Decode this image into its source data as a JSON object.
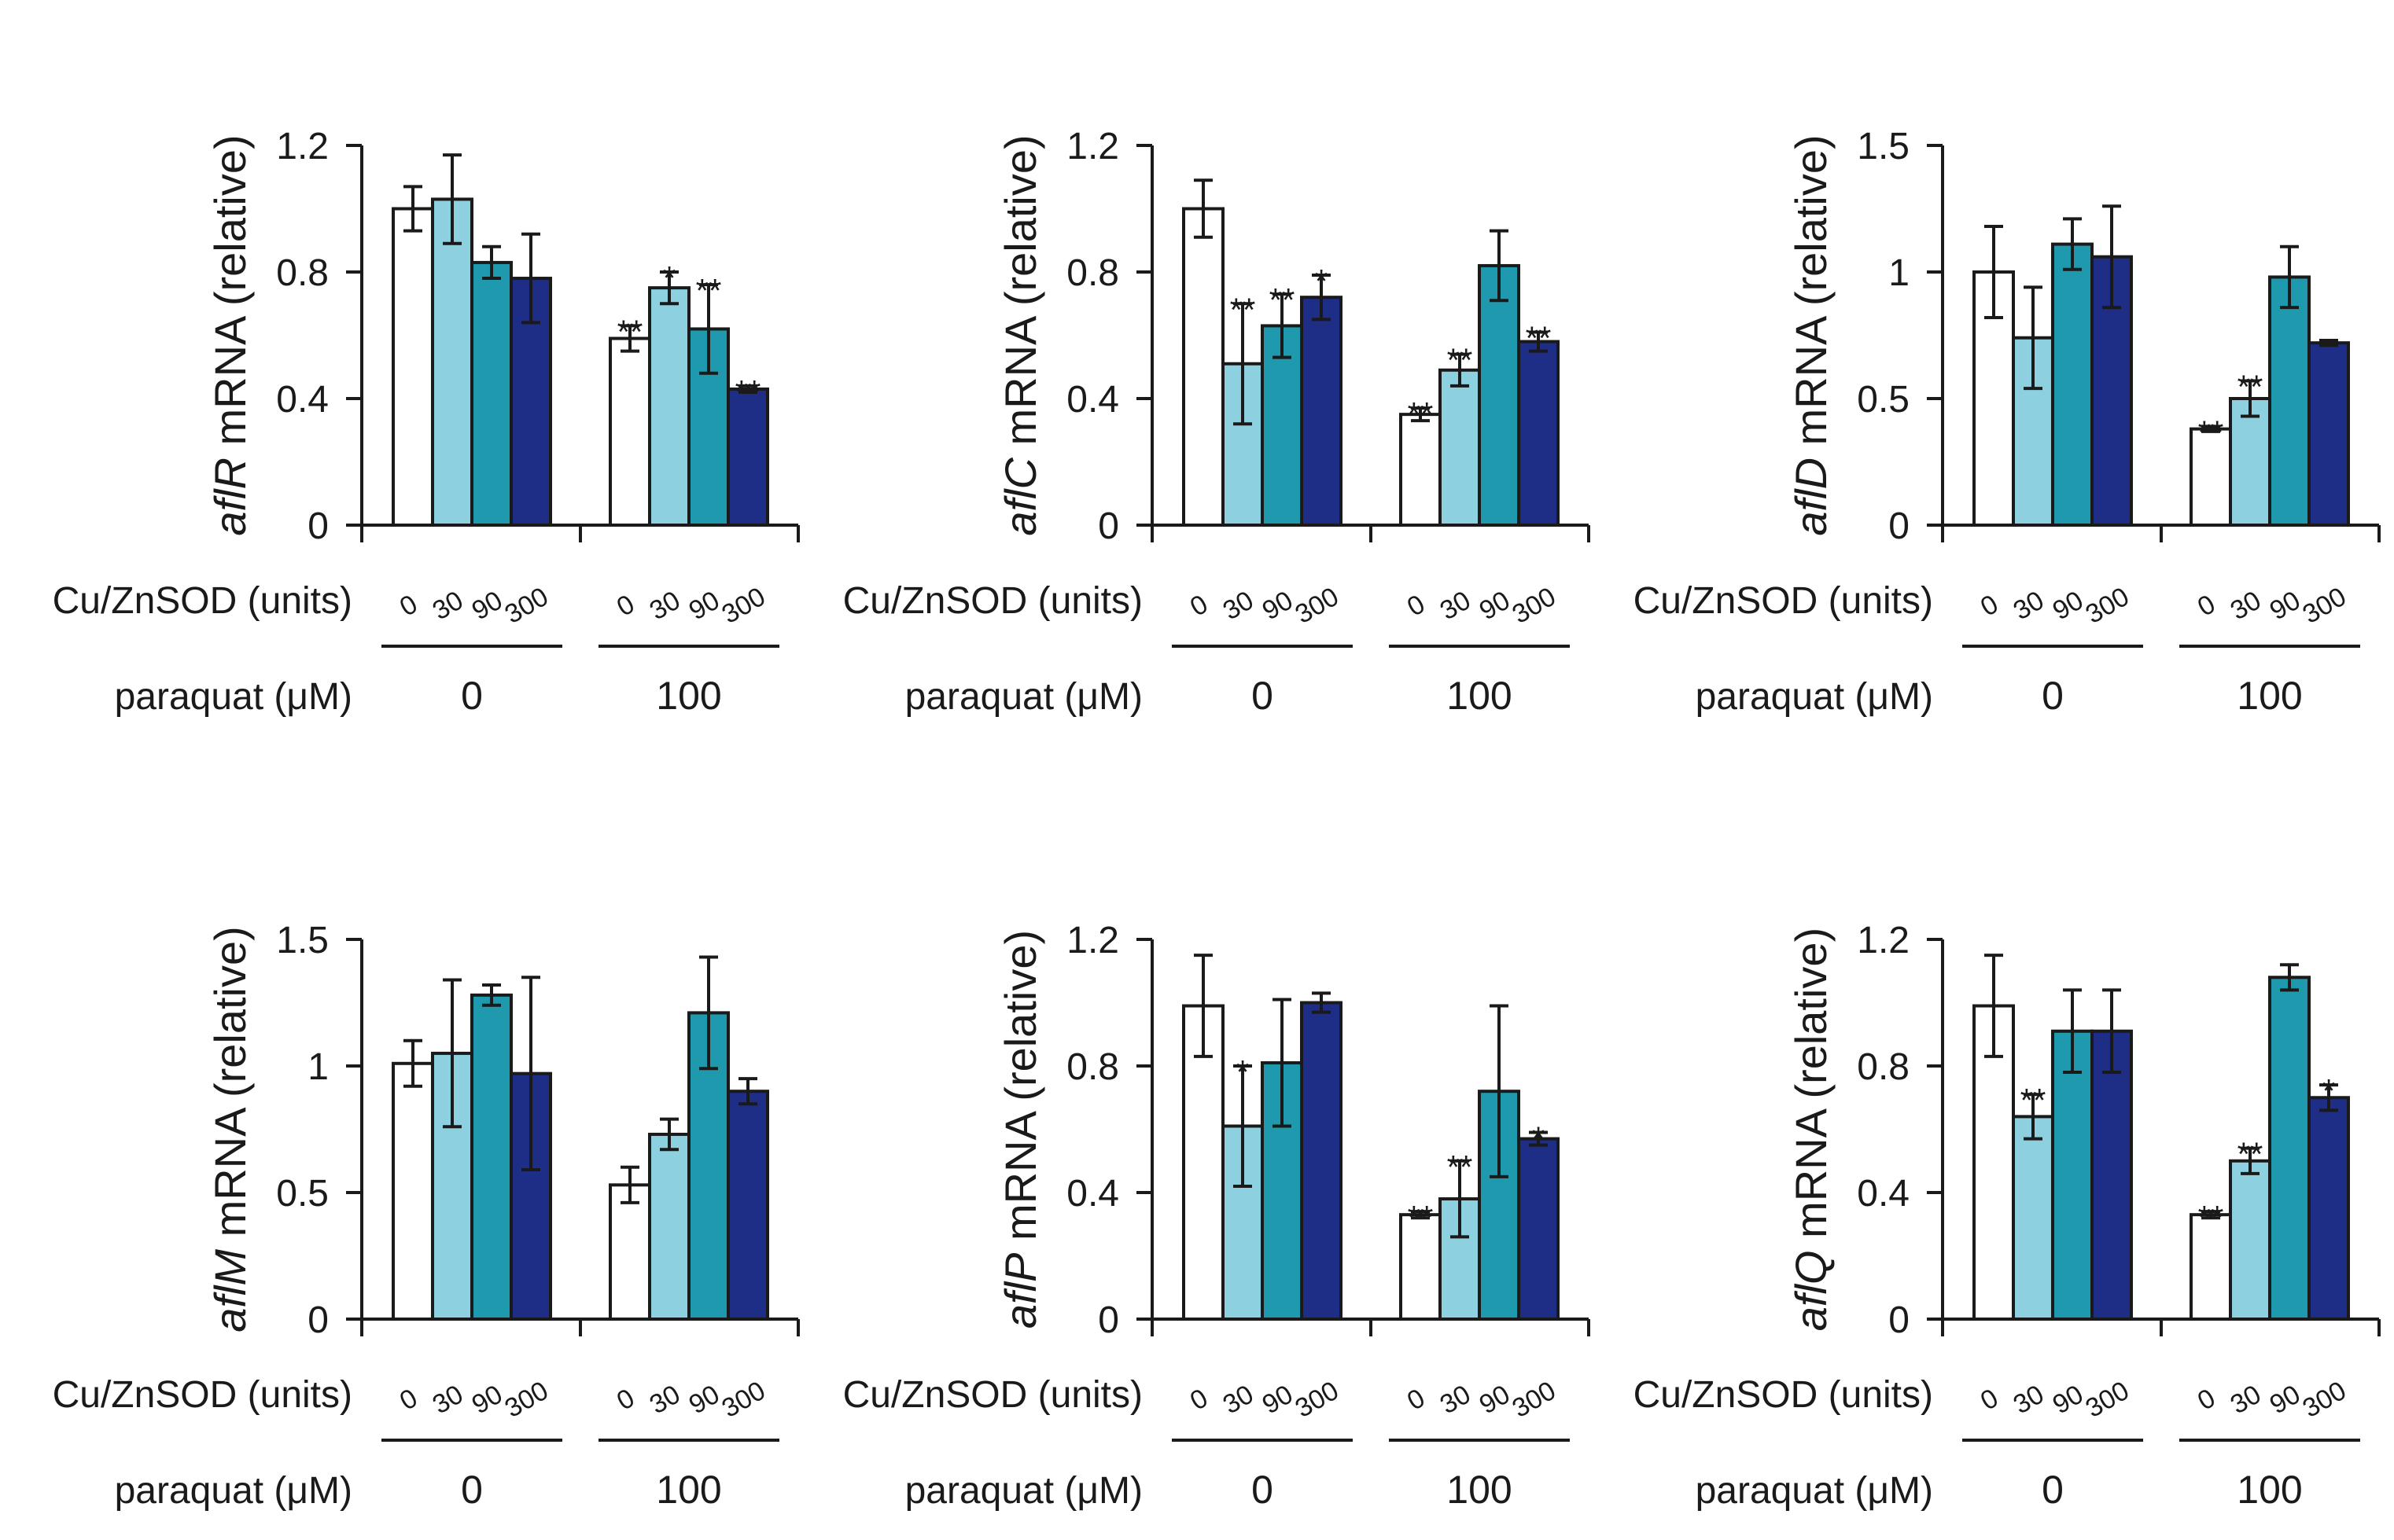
{
  "labels": {
    "enzyme_axis": "Cu/ZnSOD (units)",
    "paraquat_axis": "paraquat (μM)",
    "ylabel_suffix": " mRNA (relative)",
    "cu_levels": [
      "0",
      "30",
      "90",
      "300"
    ],
    "paraquat_levels": [
      "0",
      "100"
    ]
  },
  "colors": {
    "cu_0": "#ffffff",
    "cu_30": "#8dd1e0",
    "cu_90": "#1f99ad",
    "cu_300": "#1e2d85",
    "outline": "#1a1a1a"
  },
  "chart_data": [
    {
      "type": "bar",
      "gene": "aflR",
      "ylim": [
        0,
        1.2
      ],
      "ticks": [
        "0",
        "0.4",
        "0.8",
        "1.2"
      ],
      "series": [
        {
          "name": "0",
          "values": [
            1.0,
            0.59
          ],
          "errors": [
            0.07,
            0.04
          ],
          "sig": [
            "",
            "**"
          ]
        },
        {
          "name": "30",
          "values": [
            1.03,
            0.75
          ],
          "errors": [
            0.14,
            0.05
          ],
          "sig": [
            "",
            "*"
          ]
        },
        {
          "name": "90",
          "values": [
            0.83,
            0.62
          ],
          "errors": [
            0.05,
            0.14
          ],
          "sig": [
            "",
            "**"
          ]
        },
        {
          "name": "300",
          "values": [
            0.78,
            0.43
          ],
          "errors": [
            0.14,
            0.01
          ],
          "sig": [
            "",
            "**"
          ]
        }
      ]
    },
    {
      "type": "bar",
      "gene": "aflC",
      "ylim": [
        0,
        1.2
      ],
      "ticks": [
        "0",
        "0.4",
        "0.8",
        "1.2"
      ],
      "series": [
        {
          "name": "0",
          "values": [
            1.0,
            0.35
          ],
          "errors": [
            0.09,
            0.02
          ],
          "sig": [
            "",
            "**"
          ]
        },
        {
          "name": "30",
          "values": [
            0.51,
            0.49
          ],
          "errors": [
            0.19,
            0.05
          ],
          "sig": [
            "**",
            "**"
          ]
        },
        {
          "name": "90",
          "values": [
            0.63,
            0.82
          ],
          "errors": [
            0.1,
            0.11
          ],
          "sig": [
            "**",
            ""
          ]
        },
        {
          "name": "300",
          "values": [
            0.72,
            0.58
          ],
          "errors": [
            0.07,
            0.03
          ],
          "sig": [
            "*",
            "**"
          ]
        }
      ]
    },
    {
      "type": "bar",
      "gene": "aflD",
      "ylim": [
        0,
        1.5
      ],
      "ticks": [
        "0",
        "0.5",
        "1",
        "1.5"
      ],
      "series": [
        {
          "name": "0",
          "values": [
            1.0,
            0.38
          ],
          "errors": [
            0.18,
            0.01
          ],
          "sig": [
            "",
            "**"
          ]
        },
        {
          "name": "30",
          "values": [
            0.74,
            0.5
          ],
          "errors": [
            0.2,
            0.07
          ],
          "sig": [
            "",
            "**"
          ]
        },
        {
          "name": "90",
          "values": [
            1.11,
            0.98
          ],
          "errors": [
            0.1,
            0.12
          ],
          "sig": [
            "",
            ""
          ]
        },
        {
          "name": "300",
          "values": [
            1.06,
            0.72
          ],
          "errors": [
            0.2,
            0.01
          ],
          "sig": [
            "",
            ""
          ]
        }
      ]
    },
    {
      "type": "bar",
      "gene": "aflM",
      "ylim": [
        0,
        1.5
      ],
      "ticks": [
        "0",
        "0.5",
        "1",
        "1.5"
      ],
      "series": [
        {
          "name": "0",
          "values": [
            1.01,
            0.53
          ],
          "errors": [
            0.09,
            0.07
          ],
          "sig": [
            "",
            ""
          ]
        },
        {
          "name": "30",
          "values": [
            1.05,
            0.73
          ],
          "errors": [
            0.29,
            0.06
          ],
          "sig": [
            "",
            ""
          ]
        },
        {
          "name": "90",
          "values": [
            1.28,
            1.21
          ],
          "errors": [
            0.04,
            0.22
          ],
          "sig": [
            "",
            ""
          ]
        },
        {
          "name": "300",
          "values": [
            0.97,
            0.9
          ],
          "errors": [
            0.38,
            0.05
          ],
          "sig": [
            "",
            ""
          ]
        }
      ]
    },
    {
      "type": "bar",
      "gene": "aflP",
      "ylim": [
        0,
        1.2
      ],
      "ticks": [
        "0",
        "0.4",
        "0.8",
        "1.2"
      ],
      "series": [
        {
          "name": "0",
          "values": [
            0.99,
            0.33
          ],
          "errors": [
            0.16,
            0.01
          ],
          "sig": [
            "",
            "**"
          ]
        },
        {
          "name": "30",
          "values": [
            0.61,
            0.38
          ],
          "errors": [
            0.19,
            0.12
          ],
          "sig": [
            "*",
            "**"
          ]
        },
        {
          "name": "90",
          "values": [
            0.81,
            0.72
          ],
          "errors": [
            0.2,
            0.27
          ],
          "sig": [
            "",
            ""
          ]
        },
        {
          "name": "300",
          "values": [
            1.0,
            0.57
          ],
          "errors": [
            0.03,
            0.02
          ],
          "sig": [
            "",
            "*"
          ]
        }
      ]
    },
    {
      "type": "bar",
      "gene": "aflQ",
      "ylim": [
        0,
        1.2
      ],
      "ticks": [
        "0",
        "0.4",
        "0.8",
        "1.2"
      ],
      "series": [
        {
          "name": "0",
          "values": [
            0.99,
            0.33
          ],
          "errors": [
            0.16,
            0.01
          ],
          "sig": [
            "",
            "**"
          ]
        },
        {
          "name": "30",
          "values": [
            0.64,
            0.5
          ],
          "errors": [
            0.07,
            0.04
          ],
          "sig": [
            "**",
            "**"
          ]
        },
        {
          "name": "90",
          "values": [
            0.91,
            1.08
          ],
          "errors": [
            0.13,
            0.04
          ],
          "sig": [
            "",
            ""
          ]
        },
        {
          "name": "300",
          "values": [
            0.91,
            0.7
          ],
          "errors": [
            0.13,
            0.04
          ],
          "sig": [
            "",
            "*"
          ]
        }
      ]
    }
  ]
}
